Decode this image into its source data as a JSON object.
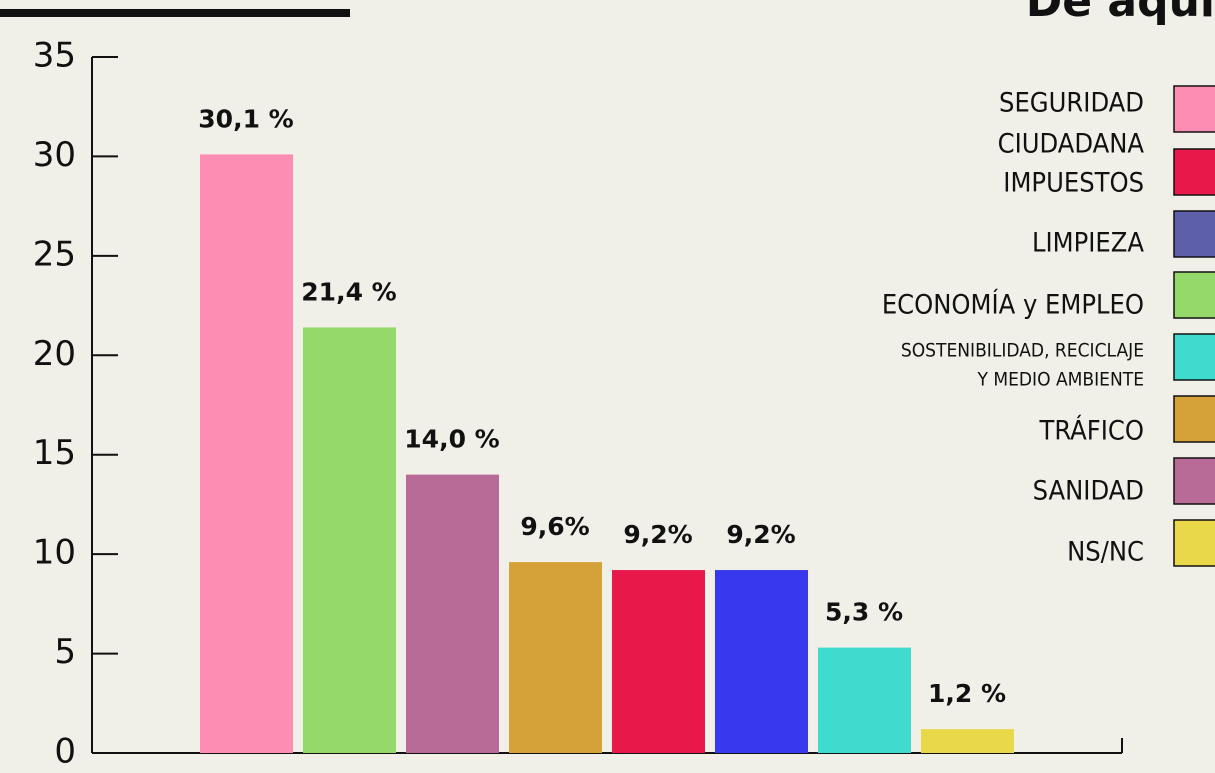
{
  "chart_data": {
    "type": "bar",
    "logo": "De aqui",
    "categories": [
      null,
      null,
      null,
      null,
      null,
      null,
      null,
      null
    ],
    "values": [
      30.1,
      21.4,
      14.0,
      9.6,
      9.2,
      9.2,
      5.3,
      1.2
    ],
    "value_labels": [
      "30,1 %",
      "21,4 %",
      "14,0 %",
      "9,6%",
      "9,2%",
      "9,2%",
      "5,3 %",
      "1,2 %"
    ],
    "colors": [
      "#fe8db3",
      "#95d96a",
      "#b86b96",
      "#d5a23a",
      "#e8184b",
      "#3838ee",
      "#40dbcf",
      "#e9d84a"
    ],
    "ylim": [
      0,
      35
    ],
    "yticks": [
      0,
      5,
      10,
      15,
      20,
      25,
      30,
      35
    ],
    "legend": [
      {
        "name": [
          "SEGURIDAD",
          "CIUDADANA"
        ],
        "color": "#fe8db3"
      },
      {
        "name": [
          "IMPUESTOS"
        ],
        "color": "#e8184b"
      },
      {
        "name": [
          "LIMPIEZA"
        ],
        "color": "#5d5fab"
      },
      {
        "name": [
          "ECONOMÍA y EMPLEO"
        ],
        "color": "#95d96a"
      },
      {
        "name": [
          "SOSTENIBILIDAD, RECICLAJE",
          "Y MEDIO AMBIENTE"
        ],
        "color": "#40dbcf"
      },
      {
        "name": [
          "TRÁFICO"
        ],
        "color": "#d5a23a"
      },
      {
        "name": [
          "SANIDAD"
        ],
        "color": "#b86b96"
      },
      {
        "name": [
          "NS/NC"
        ],
        "color": "#e9d84a"
      }
    ]
  }
}
